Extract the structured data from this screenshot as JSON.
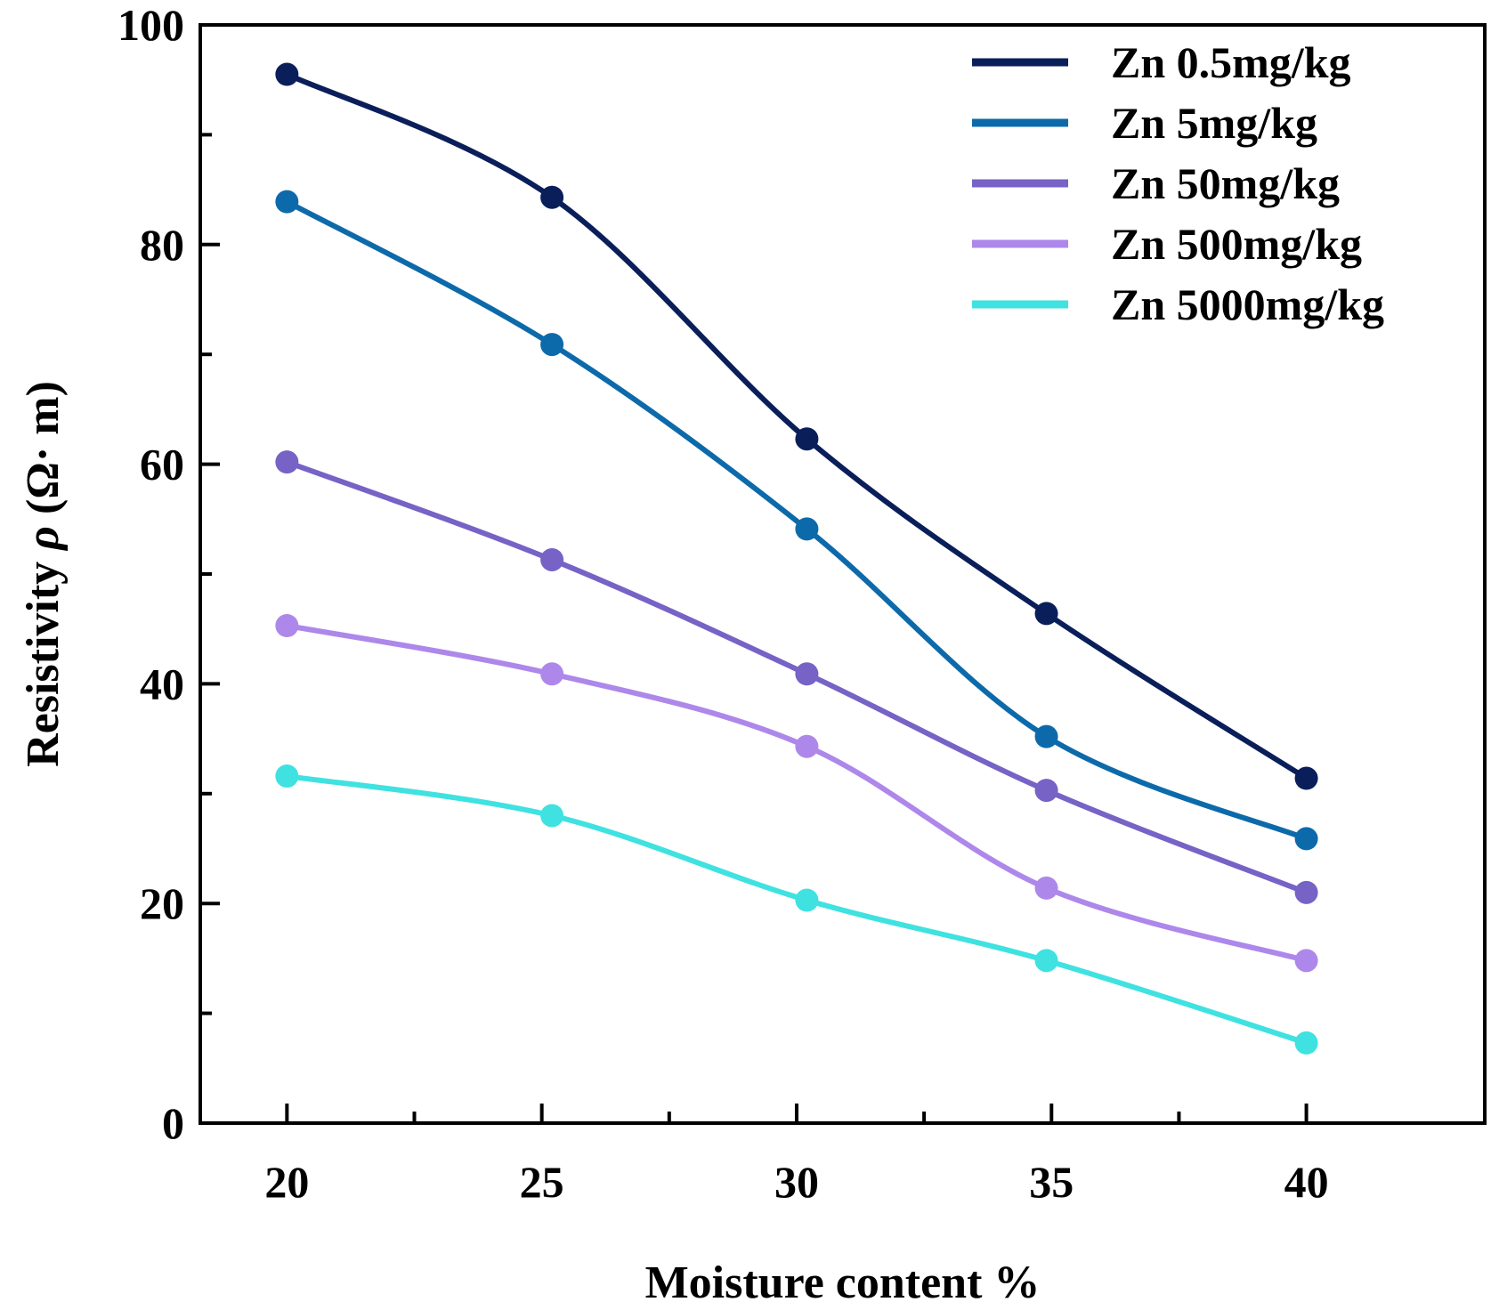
{
  "chart_data": {
    "type": "line",
    "title": "",
    "xlabel": "Moisture content %",
    "ylabel_prefix": "Resistivity ",
    "ylabel_symbol": "ρ",
    "ylabel_unit": " (Ω· m)",
    "xlim": [
      18.3,
      43.5
    ],
    "ylim": [
      0,
      100
    ],
    "x_ticks": [
      20,
      25,
      30,
      35,
      40
    ],
    "x_minor_ticks": [
      22.5,
      27.5,
      32.5,
      37.5
    ],
    "y_ticks": [
      0,
      20,
      40,
      60,
      80,
      100
    ],
    "y_minor_ticks": [
      10,
      30,
      50,
      70,
      90
    ],
    "x": [
      20,
      25.2,
      30.2,
      34.9,
      40
    ],
    "legend_position": "top-right",
    "series": [
      {
        "name": "Zn  0.5mg/kg",
        "color": "#0a1e5a",
        "values": [
          95.5,
          84.3,
          62.3,
          46.4,
          31.4
        ]
      },
      {
        "name": "Zn  5mg/kg",
        "color": "#0d6aaa",
        "values": [
          83.9,
          70.9,
          54.1,
          35.2,
          25.9
        ]
      },
      {
        "name": "Zn  50mg/kg",
        "color": "#7762c6",
        "values": [
          60.2,
          51.3,
          40.9,
          30.3,
          21.0
        ]
      },
      {
        "name": "Zn  500mg/kg",
        "color": "#ad88ea",
        "values": [
          45.3,
          40.9,
          34.3,
          21.4,
          14.8
        ]
      },
      {
        "name": "Zn  5000mg/kg",
        "color": "#3fe2e0",
        "values": [
          31.6,
          28.0,
          20.3,
          14.8,
          7.3
        ]
      }
    ]
  }
}
